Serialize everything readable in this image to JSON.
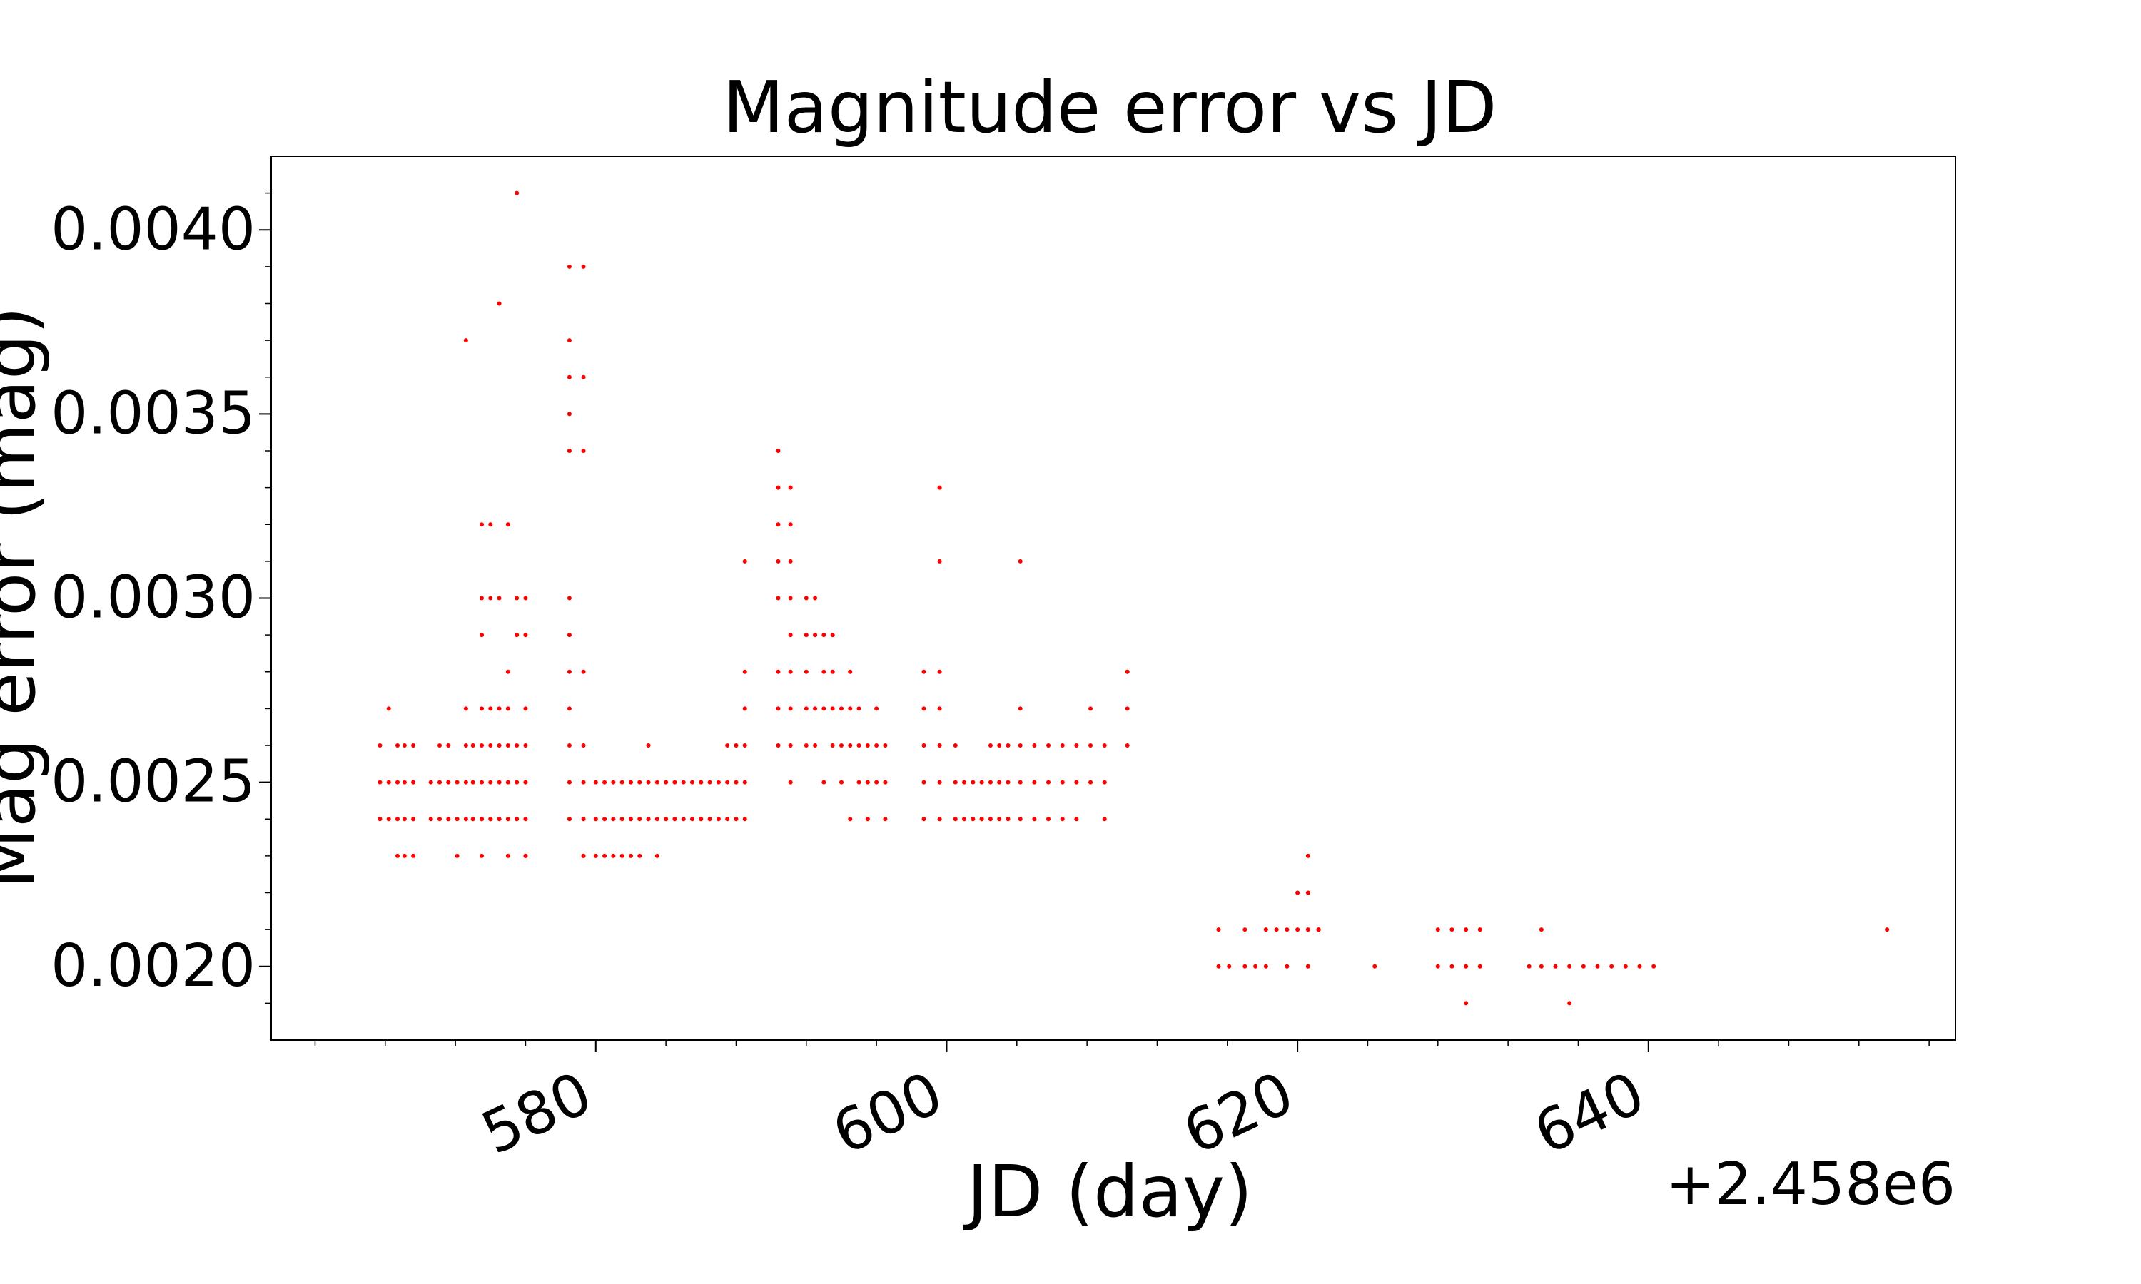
{
  "chart_data": {
    "type": "scatter",
    "title": "Magnitude error vs JD",
    "xlabel": "JD (day)",
    "ylabel": "Mag error (mag)",
    "x_offset_label": "+2.458e6",
    "xlim": [
      2458561.5,
      2458657.5
    ],
    "ylim": [
      0.0018,
      0.0042
    ],
    "x_ticks": [
      2458580,
      2458600,
      2458620,
      2458640
    ],
    "x_tick_labels": [
      "580",
      "600",
      "620",
      "640"
    ],
    "y_ticks": [
      0.002,
      0.0025,
      0.003,
      0.0035,
      0.004
    ],
    "y_tick_labels": [
      "0.0020",
      "0.0025",
      "0.0030",
      "0.0035",
      "0.0040"
    ],
    "grid": false,
    "marker_color": "#ff0000",
    "series": [
      {
        "x": [
          2458567.7,
          2458567.7,
          2458567.7,
          2458568.2,
          2458568.2,
          2458568.2,
          2458568.7,
          2458568.7,
          2458568.7,
          2458568.7,
          2458569.1,
          2458569.1,
          2458569.1,
          2458569.1,
          2458569.6,
          2458569.6,
          2458569.6,
          2458569.6,
          2458570.6,
          2458570.6,
          2458571.1,
          2458571.1,
          2458571.1,
          2458571.6,
          2458571.6,
          2458571.6,
          2458572.1,
          2458572.1,
          2458572.1,
          2458572.6,
          2458572.6,
          2458572.6,
          2458572.6,
          2458572.6,
          2458573.0,
          2458573.0,
          2458573.0,
          2458573.5,
          2458573.5,
          2458573.5,
          2458573.5,
          2458573.5,
          2458573.5,
          2458573.5,
          2458573.5,
          2458573.5,
          2458574.0,
          2458574.0,
          2458574.0,
          2458574.0,
          2458574.0,
          2458574.0,
          2458574.0,
          2458574.5,
          2458574.5,
          2458574.5,
          2458574.5,
          2458574.5,
          2458574.5,
          2458575.0,
          2458575.0,
          2458575.0,
          2458575.0,
          2458575.0,
          2458575.0,
          2458575.0,
          2458575.5,
          2458575.5,
          2458575.5,
          2458575.5,
          2458575.5,
          2458575.5,
          2458576.0,
          2458576.0,
          2458576.0,
          2458576.0,
          2458576.0,
          2458576.0,
          2458576.0,
          2458576.0,
          2458578.5,
          2458578.5,
          2458578.5,
          2458578.5,
          2458578.5,
          2458578.5,
          2458578.5,
          2458578.5,
          2458578.5,
          2458578.5,
          2458578.5,
          2458578.5,
          2458579.3,
          2458579.3,
          2458579.3,
          2458579.3,
          2458579.3,
          2458579.3,
          2458579.3,
          2458579.3,
          2458579.3,
          2458580.0,
          2458580.0,
          2458580.0,
          2458580.5,
          2458580.5,
          2458580.5,
          2458581.0,
          2458581.0,
          2458581.0,
          2458581.5,
          2458581.5,
          2458581.5,
          2458582.0,
          2458582.0,
          2458582.0,
          2458582.5,
          2458582.5,
          2458582.5,
          2458583.0,
          2458583.0,
          2458583.0,
          2458583.5,
          2458583.5,
          2458583.5,
          2458584.0,
          2458584.0,
          2458584.5,
          2458584.5,
          2458585.0,
          2458585.0,
          2458585.5,
          2458585.5,
          2458586.0,
          2458586.0,
          2458586.5,
          2458586.5,
          2458587.0,
          2458587.0,
          2458587.5,
          2458587.5,
          2458587.5,
          2458588.0,
          2458588.0,
          2458588.0,
          2458588.5,
          2458588.5,
          2458588.5,
          2458588.5,
          2458588.5,
          2458588.5,
          2458590.4,
          2458590.4,
          2458590.4,
          2458590.4,
          2458590.4,
          2458590.4,
          2458590.4,
          2458590.4,
          2458591.1,
          2458591.1,
          2458591.1,
          2458591.1,
          2458591.1,
          2458591.1,
          2458591.1,
          2458591.1,
          2458591.1,
          2458592.0,
          2458592.0,
          2458592.0,
          2458592.0,
          2458592.0,
          2458592.5,
          2458592.5,
          2458592.5,
          2458592.5,
          2458593.0,
          2458593.0,
          2458593.0,
          2458593.0,
          2458593.5,
          2458593.5,
          2458593.5,
          2458593.5,
          2458594.0,
          2458594.0,
          2458594.0,
          2458594.5,
          2458594.5,
          2458594.5,
          2458594.5,
          2458595.0,
          2458595.0,
          2458595.0,
          2458595.5,
          2458595.5,
          2458595.5,
          2458596.0,
          2458596.0,
          2458596.0,
          2458596.5,
          2458596.5,
          2458596.5,
          2458598.7,
          2458598.7,
          2458598.7,
          2458598.7,
          2458598.7,
          2458599.6,
          2458599.6,
          2458599.6,
          2458599.6,
          2458599.6,
          2458599.6,
          2458599.6,
          2458600.5,
          2458600.5,
          2458600.5,
          2458601.0,
          2458601.0,
          2458601.5,
          2458601.5,
          2458602.0,
          2458602.0,
          2458602.0,
          2458602.5,
          2458602.5,
          2458602.5,
          2458603.0,
          2458603.0,
          2458603.0,
          2458603.5,
          2458603.5,
          2458603.5,
          2458604.2,
          2458604.2,
          2458604.2,
          2458604.2,
          2458604.2,
          2458605.0,
          2458605.0,
          2458605.0,
          2458605.8,
          2458605.8,
          2458605.8,
          2458606.6,
          2458606.6,
          2458606.6,
          2458607.4,
          2458607.4,
          2458607.4,
          2458608.2,
          2458608.2,
          2458608.2,
          2458609.0,
          2458609.0,
          2458609.0,
          2458610.3,
          2458610.3,
          2458610.3,
          2458610.3,
          2458615.5,
          2458615.5,
          2458616.1,
          2458617.0,
          2458617.0,
          2458617.6,
          2458618.2,
          2458618.2,
          2458618.8,
          2458619.4,
          2458619.4,
          2458620.0,
          2458620.0,
          2458620.6,
          2458620.6,
          2458620.6,
          2458620.6,
          2458621.2,
          2458621.2,
          2458624.4,
          2458628.0,
          2458628.0,
          2458628.8,
          2458628.8,
          2458629.6,
          2458629.6,
          2458629.6,
          2458630.4,
          2458630.4,
          2458633.2,
          2458633.9,
          2458633.9,
          2458634.7,
          2458635.5,
          2458635.5,
          2458636.3,
          2458637.1,
          2458637.9,
          2458638.7,
          2458639.5,
          2458640.3,
          2458653.6
        ],
        "y": [
          0.0026,
          0.0025,
          0.0024,
          0.0027,
          0.0025,
          0.0024,
          0.0026,
          0.0025,
          0.0024,
          0.0023,
          0.0026,
          0.0025,
          0.0024,
          0.0023,
          0.0026,
          0.0025,
          0.0024,
          0.0023,
          0.0025,
          0.0024,
          0.0026,
          0.0025,
          0.0024,
          0.0026,
          0.0025,
          0.0024,
          0.0025,
          0.0024,
          0.0023,
          0.0037,
          0.0027,
          0.0026,
          0.0025,
          0.0024,
          0.0026,
          0.0025,
          0.0024,
          0.0032,
          0.003,
          0.0029,
          0.0027,
          0.0026,
          0.0025,
          0.0024,
          0.0024,
          0.0023,
          0.0032,
          0.003,
          0.0027,
          0.0026,
          0.0025,
          0.0024,
          0.0024,
          0.0038,
          0.003,
          0.0027,
          0.0026,
          0.0025,
          0.0024,
          0.0032,
          0.0028,
          0.0027,
          0.0026,
          0.0025,
          0.0024,
          0.0023,
          0.0041,
          0.003,
          0.0029,
          0.0026,
          0.0025,
          0.0024,
          0.003,
          0.0029,
          0.0027,
          0.0026,
          0.0025,
          0.0024,
          0.0023,
          0.0023,
          0.0039,
          0.0037,
          0.0036,
          0.0035,
          0.0034,
          0.003,
          0.0029,
          0.0028,
          0.0027,
          0.0026,
          0.0025,
          0.0024,
          0.0039,
          0.0036,
          0.0034,
          0.0028,
          0.0026,
          0.0025,
          0.0024,
          0.0023,
          0.0023,
          0.0025,
          0.0024,
          0.0023,
          0.0025,
          0.0024,
          0.0023,
          0.0025,
          0.0024,
          0.0023,
          0.0025,
          0.0024,
          0.0023,
          0.0025,
          0.0024,
          0.0023,
          0.0025,
          0.0024,
          0.0023,
          0.0026,
          0.0025,
          0.0024,
          0.0025,
          0.0024,
          0.0023,
          0.0025,
          0.0024,
          0.0025,
          0.0024,
          0.0025,
          0.0024,
          0.0025,
          0.0024,
          0.0025,
          0.0024,
          0.0025,
          0.0024,
          0.0025,
          0.0024,
          0.0026,
          0.0025,
          0.0024,
          0.0026,
          0.0025,
          0.0024,
          0.0031,
          0.0028,
          0.0027,
          0.0026,
          0.0025,
          0.0024,
          0.0034,
          0.0033,
          0.0032,
          0.0031,
          0.003,
          0.0028,
          0.0027,
          0.0026,
          0.0033,
          0.0032,
          0.0031,
          0.003,
          0.0029,
          0.0028,
          0.0027,
          0.0026,
          0.0025,
          0.003,
          0.0029,
          0.0028,
          0.0027,
          0.0026,
          0.003,
          0.0029,
          0.0027,
          0.0026,
          0.0029,
          0.0028,
          0.0027,
          0.0025,
          0.0029,
          0.0028,
          0.0027,
          0.0026,
          0.0027,
          0.0026,
          0.0025,
          0.0028,
          0.0027,
          0.0026,
          0.0024,
          0.0027,
          0.0026,
          0.0025,
          0.0026,
          0.0025,
          0.0024,
          0.0027,
          0.0026,
          0.0025,
          0.0026,
          0.0025,
          0.0024,
          0.0028,
          0.0027,
          0.0026,
          0.0025,
          0.0024,
          0.0033,
          0.0031,
          0.0028,
          0.0027,
          0.0026,
          0.0025,
          0.0024,
          0.0025,
          0.0024,
          0.0026,
          0.0025,
          0.0024,
          0.0025,
          0.0024,
          0.0025,
          0.0024,
          0.0024,
          0.0026,
          0.0025,
          0.0024,
          0.0026,
          0.0025,
          0.0024,
          0.0026,
          0.0025,
          0.0024,
          0.0031,
          0.0027,
          0.0026,
          0.0025,
          0.0024,
          0.0026,
          0.0025,
          0.0024,
          0.0026,
          0.0025,
          0.0024,
          0.0026,
          0.0025,
          0.0024,
          0.0026,
          0.0025,
          0.0024,
          0.0027,
          0.0026,
          0.0025,
          0.0026,
          0.0025,
          0.0024,
          0.0028,
          0.0027,
          0.0026,
          0.0028,
          0.0021,
          0.002,
          0.002,
          0.0021,
          0.002,
          0.002,
          0.0021,
          0.002,
          0.0021,
          0.0021,
          0.002,
          0.0022,
          0.0021,
          0.0023,
          0.0022,
          0.0021,
          0.002,
          0.0021,
          0.0021,
          0.002,
          0.0021,
          0.002,
          0.0021,
          0.002,
          0.0021,
          0.002,
          0.0019,
          0.0021,
          0.002,
          0.002,
          0.0021,
          0.002,
          0.002,
          0.002,
          0.0019,
          0.002,
          0.002,
          0.002,
          0.002,
          0.002,
          0.002,
          0.0021
        ]
      }
    ]
  }
}
